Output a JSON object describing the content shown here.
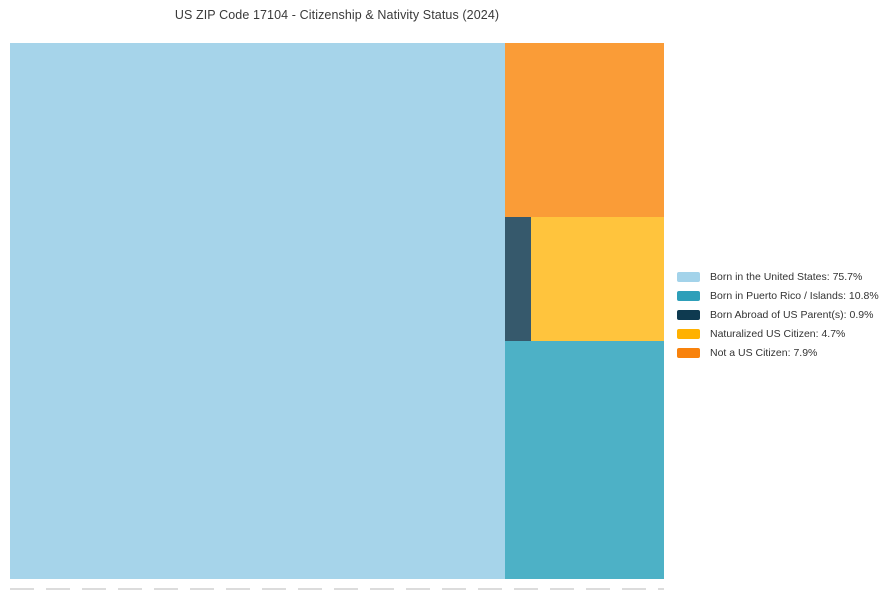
{
  "title": "US ZIP Code 17104 - Citizenship & Nativity Status (2024)",
  "chart_data": {
    "type": "treemap",
    "title": "US ZIP Code 17104 - Citizenship & Nativity Status (2024)",
    "total": 100,
    "legend_position": "right",
    "items": [
      {
        "id": "born-in-us",
        "label": "Born in the United States",
        "value": 75.7,
        "rect_color": "#A6D4EA",
        "legend_color": "#A3D3EA"
      },
      {
        "id": "born-puerto-rico-islands",
        "label": "Born in Puerto Rico / Islands",
        "value": 10.8,
        "rect_color": "#4DB1C6",
        "legend_color": "#2E9FB9"
      },
      {
        "id": "born-abroad-us-parents",
        "label": "Born Abroad of US Parent(s)",
        "value": 0.9,
        "rect_color": "#36596C",
        "legend_color": "#0E3A50"
      },
      {
        "id": "naturalized-us-citizen",
        "label": "Naturalized US Citizen",
        "value": 4.7,
        "rect_color": "#FFC43D",
        "legend_color": "#FFB101"
      },
      {
        "id": "not-us-citizen",
        "label": "Not a US Citizen",
        "value": 7.9,
        "rect_color": "#FA9C37",
        "legend_color": "#F8820C"
      }
    ]
  }
}
